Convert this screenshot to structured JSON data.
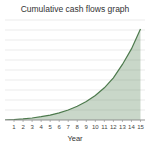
{
  "chart_data": {
    "type": "area",
    "title": "Cumulative cash flows graph",
    "x_label": "Year",
    "x": [
      0,
      1,
      2,
      3,
      4,
      5,
      6,
      7,
      8,
      9,
      10,
      11,
      12,
      13,
      14,
      15
    ],
    "values": [
      0,
      0.02,
      0.05,
      0.09,
      0.15,
      0.22,
      0.32,
      0.45,
      0.62,
      0.83,
      1.1,
      1.45,
      1.9,
      2.5,
      3.2,
      4.1
    ],
    "color": "#4d7a4d",
    "xlim": [
      0,
      15.5
    ],
    "ylim": [
      0,
      4.5
    ],
    "xticks": [
      1,
      2,
      3,
      4,
      5,
      6,
      7,
      8,
      9,
      10,
      11,
      12,
      13,
      14,
      15
    ],
    "yticks": [
      0,
      0.45,
      0.9,
      1.35,
      1.8,
      2.25,
      2.7,
      3.15,
      3.6,
      4.05,
      4.5
    ],
    "grid": true,
    "tick_labels": "x"
  }
}
